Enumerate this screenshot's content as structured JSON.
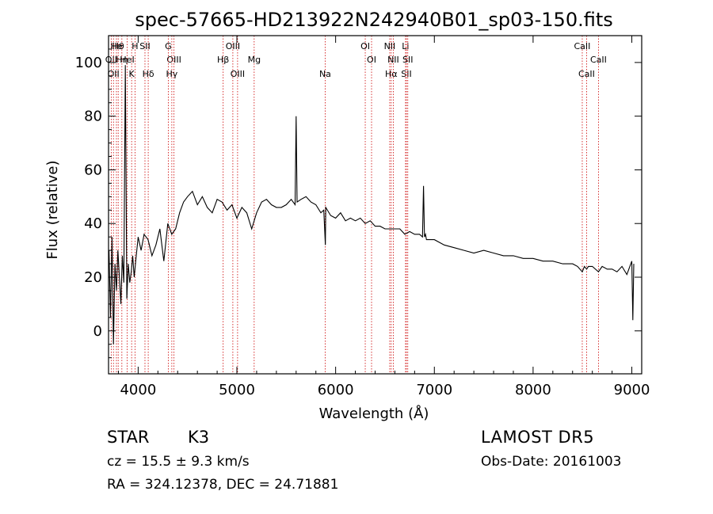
{
  "chart_data": {
    "type": "line",
    "title": "spec-57665-HD213922N242940B01_sp03-150.fits",
    "xlabel": "Wavelength (Å)",
    "ylabel": "Flux (relative)",
    "xlim": [
      3700,
      9100
    ],
    "ylim": [
      -16,
      110
    ],
    "x_ticks": [
      4000,
      5000,
      6000,
      7000,
      8000,
      9000
    ],
    "y_ticks": [
      0,
      20,
      40,
      60,
      80,
      100
    ],
    "grid": false,
    "line_color": "#000000",
    "marker_line_color": "#cc0000",
    "series": [
      {
        "x": [
          3705,
          3720,
          3735,
          3750,
          3765,
          3780,
          3795,
          3810,
          3825,
          3840,
          3855,
          3870,
          3885,
          3900,
          3915,
          3930,
          3945,
          3960,
          3975,
          4000,
          4030,
          4060,
          4100,
          4140,
          4180,
          4220,
          4260,
          4300,
          4340,
          4380,
          4420,
          4460,
          4500,
          4550,
          4600,
          4650,
          4700,
          4750,
          4800,
          4850,
          4900,
          4950,
          5000,
          5050,
          5100,
          5150,
          5200,
          5250,
          5300,
          5350,
          5400,
          5450,
          5500,
          5550,
          5590,
          5600,
          5610,
          5650,
          5700,
          5750,
          5800,
          5850,
          5880,
          5896,
          5900,
          5950,
          6000,
          6050,
          6100,
          6150,
          6200,
          6250,
          6300,
          6350,
          6400,
          6450,
          6500,
          6550,
          6600,
          6650,
          6700,
          6750,
          6800,
          6850,
          6880,
          6890,
          6900,
          6910,
          6920,
          6950,
          7000,
          7100,
          7200,
          7300,
          7400,
          7500,
          7600,
          7700,
          7800,
          7900,
          8000,
          8100,
          8200,
          8300,
          8400,
          8450,
          8498,
          8520,
          8542,
          8560,
          8600,
          8662,
          8700,
          8750,
          8800,
          8850,
          8900,
          8950,
          9000,
          9010,
          9020
        ],
        "y": [
          30,
          5,
          35,
          -5,
          25,
          15,
          30,
          20,
          10,
          28,
          18,
          99,
          12,
          25,
          18,
          22,
          28,
          20,
          26,
          35,
          30,
          36,
          34,
          28,
          32,
          38,
          26,
          40,
          36,
          38,
          44,
          48,
          50,
          52,
          47,
          50,
          46,
          44,
          49,
          48,
          45,
          47,
          42,
          46,
          44,
          38,
          44,
          48,
          49,
          47,
          46,
          46,
          47,
          49,
          47,
          80,
          48,
          49,
          50,
          48,
          47,
          44,
          45,
          32,
          46,
          43,
          42,
          44,
          41,
          42,
          41,
          42,
          40,
          41,
          39,
          39,
          38,
          38,
          38,
          38,
          36,
          37,
          36,
          36,
          35,
          54,
          35,
          36,
          34,
          34,
          34,
          32,
          31,
          30,
          29,
          30,
          29,
          28,
          28,
          27,
          27,
          26,
          26,
          25,
          25,
          24,
          22,
          24,
          23,
          24,
          24,
          22,
          24,
          23,
          23,
          22,
          24,
          21,
          26,
          4,
          25
        ]
      }
    ],
    "line_markers": [
      {
        "label": "Hθ",
        "x": 3798
      },
      {
        "label": "OII",
        "x": 3727
      },
      {
        "label": "OII",
        "x": 3750
      },
      {
        "label": "He",
        "x": 3780
      },
      {
        "label": "Hη",
        "x": 3835
      },
      {
        "label": "K",
        "x": 3934
      },
      {
        "label": "H",
        "x": 3968
      },
      {
        "label": "HeI",
        "x": 3889
      },
      {
        "label": "Hδ",
        "x": 4102
      },
      {
        "label": "SII",
        "x": 4069
      },
      {
        "label": "OIII",
        "x": 4363
      },
      {
        "label": "Hγ",
        "x": 4341
      },
      {
        "label": "G",
        "x": 4305
      },
      {
        "label": "Hβ",
        "x": 4861
      },
      {
        "label": "OIII",
        "x": 5007
      },
      {
        "label": "OIII",
        "x": 4959
      },
      {
        "label": "Mg",
        "x": 5175
      },
      {
        "label": "Na",
        "x": 5894
      },
      {
        "label": "OI",
        "x": 6300
      },
      {
        "label": "OI",
        "x": 6364
      },
      {
        "label": "Hα",
        "x": 6563
      },
      {
        "label": "NII",
        "x": 6548
      },
      {
        "label": "NII",
        "x": 6584
      },
      {
        "label": "SII",
        "x": 6717
      },
      {
        "label": "Li",
        "x": 6708
      },
      {
        "label": "SII",
        "x": 6731
      },
      {
        "label": "CaII",
        "x": 8542
      },
      {
        "label": "CaII",
        "x": 8498
      },
      {
        "label": "CaII",
        "x": 8662
      }
    ]
  },
  "info": {
    "object_class": "STAR",
    "subclass": "K3",
    "survey": "LAMOST DR5",
    "redshift": "cz = 15.5 ± 9.3 km/s",
    "obs_date": "Obs-Date: 20161003",
    "coords": "RA = 324.12378, DEC =  24.71881"
  }
}
